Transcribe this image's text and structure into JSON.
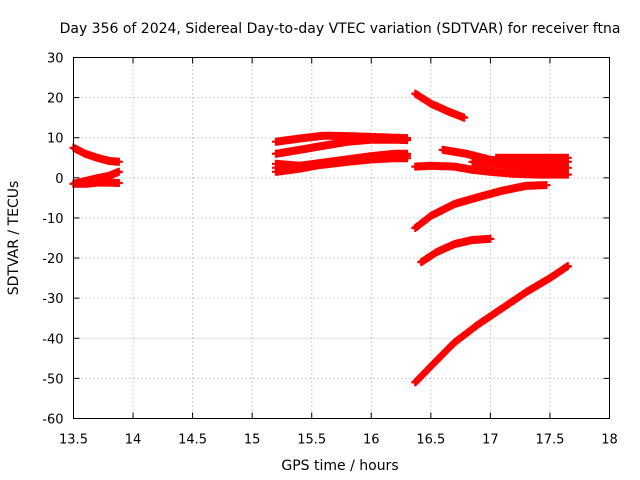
{
  "chart_data": {
    "type": "scatter",
    "title": "Day 356 of 2024, Sidereal Day-to-day VTEC variation (SDTVAR) for receiver ftna",
    "xlabel": "GPS time / hours",
    "ylabel": "SDTVAR / TECUs",
    "xlim": [
      13.5,
      18
    ],
    "ylim": [
      -60,
      30
    ],
    "xticks": [
      "13.5",
      "14",
      "14.5",
      "15",
      "15.5",
      "16",
      "16.5",
      "17",
      "17.5",
      "18"
    ],
    "yticks": [
      "30",
      "20",
      "10",
      "0",
      "-10",
      "-20",
      "-30",
      "-40",
      "-50",
      "-60"
    ],
    "xtick_values": [
      13.5,
      14,
      14.5,
      15,
      15.5,
      16,
      16.5,
      17,
      17.5,
      18
    ],
    "ytick_values": [
      30,
      20,
      10,
      0,
      -10,
      -20,
      -30,
      -40,
      -50,
      -60
    ],
    "grid": true,
    "marker": "plus",
    "color": "#ff0000",
    "series": [
      {
        "name": "s1",
        "x": [
          13.5,
          13.6,
          13.7,
          13.8,
          13.88
        ],
        "y": [
          7.5,
          6.0,
          5.0,
          4.2,
          4.0
        ]
      },
      {
        "name": "s2",
        "x": [
          13.5,
          13.6,
          13.7,
          13.8,
          13.88
        ],
        "y": [
          -1.5,
          -0.8,
          -0.1,
          0.5,
          1.5
        ]
      },
      {
        "name": "s3",
        "x": [
          13.5,
          13.6,
          13.7,
          13.8,
          13.88
        ],
        "y": [
          -1.5,
          -1.5,
          -1.2,
          -1.2,
          -1.3
        ]
      },
      {
        "name": "s4",
        "x": [
          15.2,
          15.4,
          15.6,
          15.8,
          16.0,
          16.2,
          16.3
        ],
        "y": [
          9.0,
          9.8,
          10.5,
          10.4,
          10.2,
          10.0,
          9.9
        ]
      },
      {
        "name": "s5",
        "x": [
          15.2,
          15.4,
          15.6,
          15.8,
          16.0,
          16.2,
          16.3
        ],
        "y": [
          6.0,
          7.0,
          8.0,
          9.0,
          9.5,
          9.5,
          9.4
        ]
      },
      {
        "name": "s6",
        "x": [
          15.2,
          15.4,
          15.6,
          15.8,
          16.0,
          16.2,
          16.3
        ],
        "y": [
          3.5,
          3.0,
          3.3,
          4.0,
          4.6,
          4.9,
          4.9
        ]
      },
      {
        "name": "s7",
        "x": [
          15.2,
          15.4,
          15.6,
          15.8,
          16.0,
          16.2,
          16.3
        ],
        "y": [
          2.5,
          3.0,
          3.8,
          4.6,
          5.4,
          6.0,
          6.0
        ]
      },
      {
        "name": "s8",
        "x": [
          15.2,
          15.4,
          15.6,
          15.8,
          16.0,
          16.2,
          16.3
        ],
        "y": [
          1.5,
          2.3,
          3.4,
          4.4,
          5.1,
          5.5,
          5.5
        ]
      },
      {
        "name": "s9",
        "x": [
          16.37,
          16.5,
          16.65,
          16.78
        ],
        "y": [
          21.0,
          18.5,
          16.5,
          15.0
        ]
      },
      {
        "name": "s10",
        "x": [
          16.37,
          16.5,
          16.7,
          16.85,
          17.0,
          17.2,
          17.4,
          17.65
        ],
        "y": [
          2.8,
          3.0,
          2.8,
          2.0,
          1.5,
          1.0,
          0.8,
          0.8
        ]
      },
      {
        "name": "s11",
        "x": [
          16.6,
          16.8,
          17.0,
          17.2,
          17.4,
          17.65
        ],
        "y": [
          7.0,
          6.0,
          4.5,
          4.0,
          4.0,
          4.0
        ]
      },
      {
        "name": "s12",
        "x": [
          17.05,
          17.2,
          17.4,
          17.65
        ],
        "y": [
          5.0,
          5.0,
          5.0,
          5.0
        ]
      },
      {
        "name": "s13",
        "x": [
          16.85,
          17.0,
          17.2,
          17.4,
          17.65
        ],
        "y": [
          4.0,
          3.5,
          3.0,
          2.6,
          2.5
        ]
      },
      {
        "name": "s14",
        "x": [
          16.37,
          16.5,
          16.7,
          16.9,
          17.1,
          17.3,
          17.47
        ],
        "y": [
          -12.5,
          -9.5,
          -6.5,
          -4.8,
          -3.2,
          -2.0,
          -1.8
        ]
      },
      {
        "name": "s15",
        "x": [
          16.42,
          16.55,
          16.7,
          16.85,
          17.0
        ],
        "y": [
          -21.0,
          -18.5,
          -16.5,
          -15.5,
          -15.2
        ]
      },
      {
        "name": "s16",
        "x": [
          16.37,
          16.5,
          16.7,
          16.9,
          17.1,
          17.3,
          17.5,
          17.65
        ],
        "y": [
          -51.0,
          -47.0,
          -41.0,
          -36.5,
          -32.5,
          -28.5,
          -25.0,
          -22.0
        ]
      }
    ]
  }
}
